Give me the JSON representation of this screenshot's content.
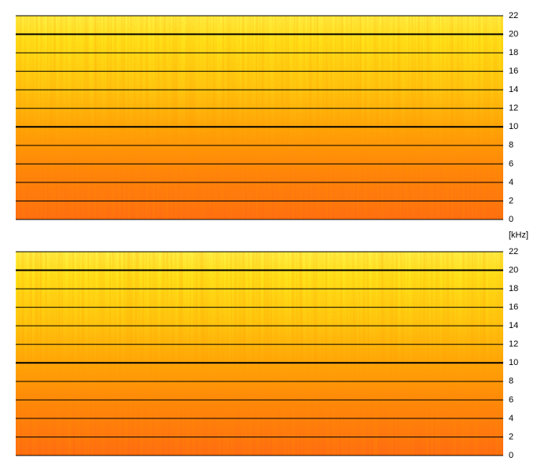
{
  "chart_data": [
    {
      "type": "spectrogram",
      "ylabel": "[kHz]",
      "ylim": [
        0,
        22
      ],
      "yticks": [
        0,
        2,
        4,
        6,
        8,
        10,
        12,
        14,
        16,
        18,
        20,
        22
      ],
      "emphasized_yticks": [
        10,
        20
      ],
      "grid": true
    },
    {
      "type": "spectrogram",
      "ylim": [
        0,
        22
      ],
      "yticks": [
        0,
        2,
        4,
        6,
        8,
        10,
        12,
        14,
        16,
        18,
        20,
        22
      ],
      "emphasized_yticks": [
        10,
        20
      ],
      "grid": true
    }
  ]
}
